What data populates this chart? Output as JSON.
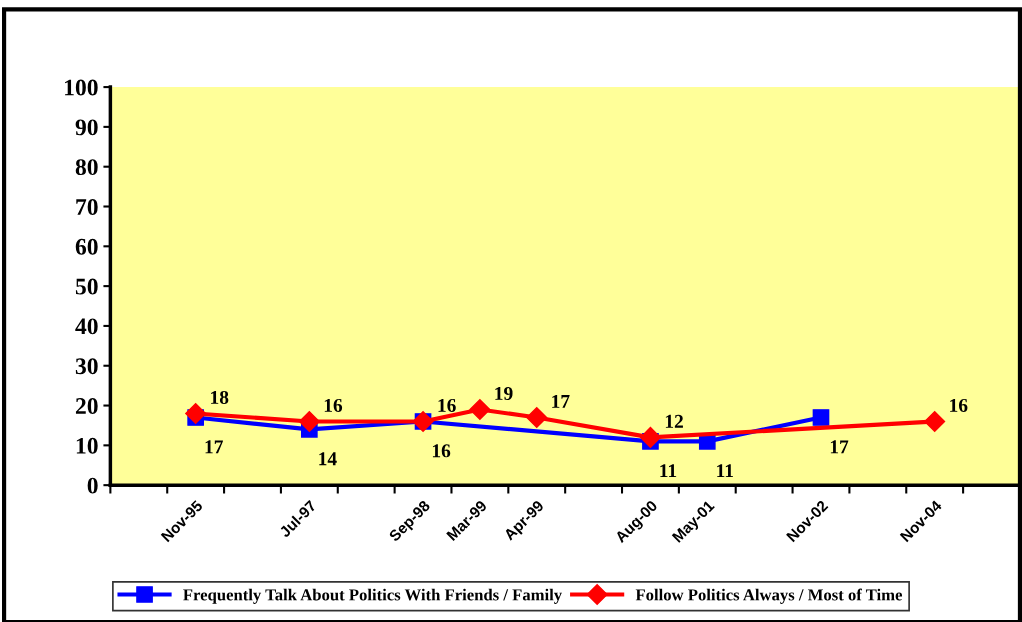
{
  "chart_data": {
    "type": "line",
    "categories": [
      null,
      "Nov-95",
      null,
      "Jul-97",
      null,
      "Sep-98",
      "Mar-99",
      "Apr-99",
      null,
      "Aug-00",
      "May-01",
      null,
      "Nov-02",
      null,
      "Nov-04",
      null
    ],
    "series": [
      {
        "name": "Frequently Talk About Politics With Friends / Family",
        "color": "#0000ff",
        "marker": "square",
        "values": [
          null,
          17,
          null,
          14,
          null,
          16,
          null,
          null,
          null,
          11,
          11,
          null,
          17,
          null,
          null,
          null
        ]
      },
      {
        "name": "Follow Politics Always / Most of Time",
        "color": "#ff0000",
        "marker": "diamond",
        "values": [
          null,
          18,
          null,
          16,
          null,
          16,
          19,
          17,
          null,
          12,
          null,
          null,
          null,
          null,
          16,
          null
        ]
      }
    ],
    "ylim": [
      0,
      100
    ],
    "yticks": [
      0,
      10,
      20,
      30,
      40,
      50,
      60,
      70,
      80,
      90,
      100
    ],
    "data_labels": true,
    "legend": "bottom",
    "grid": false,
    "line_style": "solid"
  }
}
